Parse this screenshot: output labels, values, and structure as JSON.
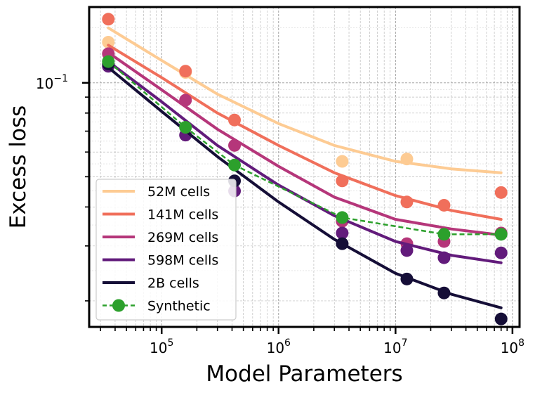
{
  "chart_data": {
    "type": "scatter",
    "title": "",
    "xlabel": "Model Parameters",
    "ylabel": "Excess loss",
    "xscale": "log",
    "yscale": "log",
    "xlim": [
      24000,
      115000000
    ],
    "ylim": [
      0.0165,
      0.175
    ],
    "grid": true,
    "legend_position": "lower-left",
    "x_major_ticks": [
      {
        "value": 100000,
        "base": "10",
        "exp": "5"
      },
      {
        "value": 1000000,
        "base": "10",
        "exp": "6"
      },
      {
        "value": 10000000,
        "base": "10",
        "exp": "7"
      },
      {
        "value": 100000000,
        "base": "10",
        "exp": "8"
      }
    ],
    "y_major_ticks": [
      {
        "value": 0.1,
        "base": "10",
        "exp": "−1"
      }
    ],
    "series": [
      {
        "name": "52M cells",
        "color": "#fdcb93",
        "marker": "circle",
        "line_style": "solid",
        "x": [
          35000,
          160000,
          3500000,
          12500000
        ],
        "y": [
          0.135,
          0.108,
          0.056,
          0.057
        ],
        "fit_x": [
          35000,
          100000,
          300000,
          1000000,
          3000000,
          10000000,
          30000000,
          80000000
        ],
        "fit_y": [
          0.15,
          0.118,
          0.092,
          0.074,
          0.063,
          0.056,
          0.053,
          0.0515
        ]
      },
      {
        "name": "141M cells",
        "color": "#f06f5b",
        "marker": "circle",
        "line_style": "solid",
        "x": [
          35000,
          160000,
          420000,
          3500000,
          12500000,
          26000000,
          80000000
        ],
        "y": [
          0.16,
          0.109,
          0.076,
          0.0485,
          0.0415,
          0.0405,
          0.0445
        ],
        "fit_x": [
          35000,
          100000,
          300000,
          1000000,
          3000000,
          10000000,
          30000000,
          80000000
        ],
        "fit_y": [
          0.132,
          0.104,
          0.08,
          0.063,
          0.0515,
          0.0435,
          0.039,
          0.0365
        ]
      },
      {
        "name": "269M cells",
        "color": "#b5367a",
        "marker": "circle",
        "line_style": "solid",
        "x": [
          35000,
          160000,
          420000,
          3500000,
          12500000,
          26000000,
          80000000
        ],
        "y": [
          0.124,
          0.088,
          0.063,
          0.036,
          0.0305,
          0.031,
          0.033
        ],
        "fit_x": [
          35000,
          100000,
          300000,
          1000000,
          3000000,
          10000000,
          30000000,
          80000000
        ],
        "fit_y": [
          0.125,
          0.095,
          0.071,
          0.054,
          0.043,
          0.0365,
          0.034,
          0.0325
        ]
      },
      {
        "name": "598M cells",
        "color": "#621b7b",
        "marker": "circle",
        "line_style": "solid",
        "x": [
          35000,
          160000,
          420000,
          3500000,
          12500000,
          26000000,
          80000000
        ],
        "y": [
          0.113,
          0.068,
          0.045,
          0.033,
          0.029,
          0.0275,
          0.0285
        ],
        "fit_x": [
          35000,
          100000,
          300000,
          1000000,
          3000000,
          10000000,
          30000000,
          80000000
        ],
        "fit_y": [
          0.117,
          0.087,
          0.063,
          0.047,
          0.0375,
          0.031,
          0.028,
          0.0265
        ]
      },
      {
        "name": "2B cells",
        "color": "#150e37",
        "marker": "circle",
        "line_style": "solid",
        "x": [
          35000,
          420000,
          3500000,
          12500000,
          26000000,
          80000000
        ],
        "y": [
          0.115,
          0.0485,
          0.0305,
          0.0235,
          0.0212,
          0.0175
        ],
        "fit_x": [
          35000,
          100000,
          300000,
          1000000,
          3000000,
          10000000,
          30000000,
          80000000
        ],
        "fit_y": [
          0.112,
          0.081,
          0.058,
          0.0415,
          0.0315,
          0.0245,
          0.021,
          0.019
        ]
      },
      {
        "name": "Synthetic",
        "color": "#2ca02c",
        "marker": "circle",
        "line_style": "dashed",
        "x": [
          35000,
          160000,
          420000,
          3500000,
          26000000,
          80000000
        ],
        "y": [
          0.117,
          0.072,
          0.0545,
          0.037,
          0.0327,
          0.0327
        ],
        "connect_markers": true
      }
    ]
  }
}
